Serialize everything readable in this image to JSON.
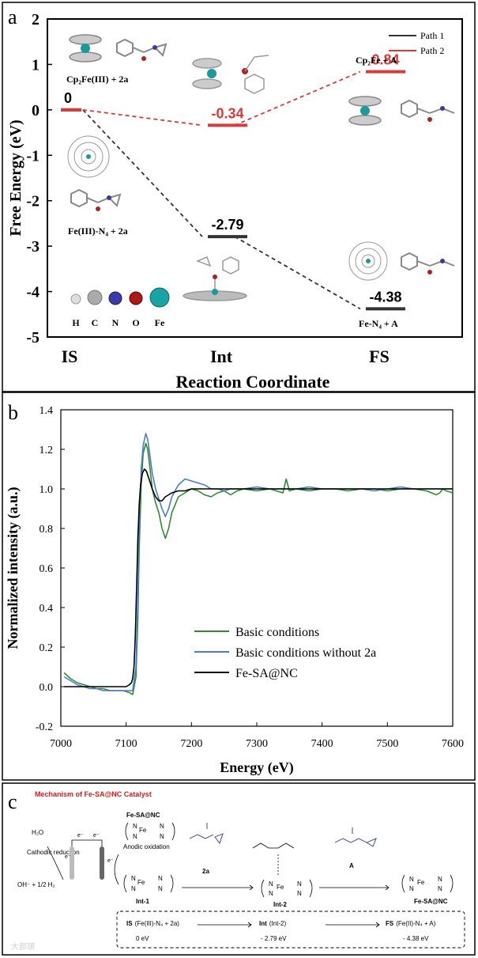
{
  "panel_a": {
    "panel_label": "a",
    "legend": [
      "Path 1",
      "Path 2"
    ],
    "species_labels": {
      "is_top": "Cp₂Fe(III) + 2a",
      "is_bottom": "Fe(III)-N₄ + 2a",
      "fs_top": "Cp₂Fe + A",
      "fs_bottom": "Fe-N₄ + A"
    },
    "atom_legend": [
      "H",
      "C",
      "N",
      "O",
      "Fe"
    ]
  },
  "panel_b": {
    "panel_label": "b"
  },
  "panel_c": {
    "panel_label": "c",
    "title": "Mechanism of Fe-SA@NC Catalyst",
    "catalyst_label": "Fe-SA@NC",
    "water": "H₂O",
    "cathodic": "Cathodic reduction",
    "anodic": "Anodic oxidation",
    "oh_product": "OH⁻ + 1/2 H₂",
    "electron": "e⁻",
    "int1": "Int-1",
    "int2": "Int-2",
    "reagent_2a": "2a",
    "reagent_A": "A",
    "product": "Fe-SA@NC",
    "fe3_label": "Fe",
    "fe2_label": "Fe",
    "n_label": "N",
    "box": {
      "is_label": "IS",
      "is_detail": "(Fe(III)-N₄ + 2a)",
      "is_energy": "0 eV",
      "int_label": "Int",
      "int_detail": "(Int-2)",
      "int_energy": "- 2.79 eV",
      "fs_label": "FS",
      "fs_detail": "(Fe(II)-N₄ + A)",
      "fs_energy": "- 4.38 eV"
    },
    "watermark": "大部頭"
  },
  "chart_data": [
    {
      "type": "line",
      "xlabel": "Reaction Coordinate",
      "ylabel": "Free Energy (eV)",
      "categories": [
        "IS",
        "Int",
        "FS"
      ],
      "ylim": [
        -5,
        2
      ],
      "yticks": [
        2,
        1,
        0,
        -1,
        -2,
        -3,
        -4,
        -5
      ],
      "series": [
        {
          "name": "Path 1",
          "color": "#333333",
          "values": [
            0,
            -2.79,
            -4.38
          ],
          "labels": [
            "",
            "-2.79",
            "-4.38"
          ]
        },
        {
          "name": "Path 2",
          "color": "#d93a3a",
          "values": [
            0,
            -0.34,
            0.84
          ],
          "labels": [
            "0",
            "-0.34",
            "0.84"
          ]
        }
      ],
      "legend_position": "top-right"
    },
    {
      "type": "line",
      "xlabel": "Energy (eV)",
      "ylabel": "Normalized intensity (a.u.)",
      "xlim": [
        7000,
        7600
      ],
      "ylim": [
        -0.2,
        1.4
      ],
      "xticks": [
        7000,
        7100,
        7200,
        7300,
        7400,
        7500,
        7600
      ],
      "yticks": [
        -0.2,
        0.0,
        0.2,
        0.4,
        0.6,
        0.8,
        1.0,
        1.2,
        1.4
      ],
      "legend_position": "bottom-center",
      "series": [
        {
          "name": "Basic conditions",
          "color": "#2e8b2e",
          "x": [
            7005,
            7015,
            7025,
            7035,
            7045,
            7055,
            7065,
            7075,
            7085,
            7095,
            7105,
            7110,
            7115,
            7118,
            7120,
            7123,
            7126,
            7130,
            7133,
            7136,
            7140,
            7145,
            7150,
            7155,
            7160,
            7165,
            7170,
            7180,
            7190,
            7200,
            7210,
            7220,
            7230,
            7240,
            7250,
            7260,
            7270,
            7280,
            7300,
            7320,
            7340,
            7345,
            7350,
            7360,
            7380,
            7400,
            7420,
            7440,
            7460,
            7480,
            7500,
            7520,
            7540,
            7560,
            7575,
            7580,
            7585,
            7590,
            7600
          ],
          "y": [
            0.07,
            0.04,
            0.02,
            0.01,
            0.0,
            -0.01,
            -0.01,
            -0.02,
            -0.02,
            -0.02,
            -0.03,
            -0.04,
            0.05,
            0.35,
            0.7,
            1.02,
            1.18,
            1.23,
            1.2,
            1.12,
            1.0,
            0.93,
            0.88,
            0.8,
            0.75,
            0.8,
            0.88,
            0.96,
            0.98,
            1.0,
            0.99,
            0.97,
            0.96,
            0.98,
            0.99,
            0.97,
            0.99,
            1.0,
            0.99,
            1.0,
            0.98,
            1.05,
            0.99,
            1.0,
            0.99,
            1.0,
            1.0,
            0.99,
            1.0,
            1.0,
            0.99,
            1.0,
            1.0,
            0.99,
            0.97,
            0.98,
            1.0,
            0.99,
            0.98
          ]
        },
        {
          "name": "Basic conditions without 2a",
          "color": "#4a7cc9",
          "x": [
            7005,
            7015,
            7025,
            7035,
            7045,
            7055,
            7065,
            7075,
            7085,
            7095,
            7105,
            7110,
            7115,
            7118,
            7120,
            7123,
            7126,
            7130,
            7133,
            7136,
            7140,
            7145,
            7150,
            7155,
            7160,
            7165,
            7170,
            7180,
            7190,
            7200,
            7210,
            7220,
            7230,
            7240,
            7250,
            7260,
            7270,
            7280,
            7300,
            7320,
            7340,
            7360,
            7380,
            7400,
            7420,
            7440,
            7460,
            7480,
            7500,
            7520,
            7540,
            7560,
            7580,
            7600
          ],
          "y": [
            0.05,
            0.03,
            0.01,
            0.0,
            -0.01,
            -0.01,
            -0.02,
            -0.02,
            -0.02,
            -0.02,
            -0.02,
            -0.02,
            0.1,
            0.45,
            0.8,
            1.1,
            1.22,
            1.28,
            1.25,
            1.18,
            1.08,
            1.0,
            0.95,
            0.9,
            0.86,
            0.9,
            0.96,
            1.02,
            1.05,
            1.04,
            1.03,
            1.02,
            1.0,
            1.0,
            0.99,
            1.0,
            1.0,
            1.0,
            1.01,
            1.0,
            1.0,
            1.0,
            1.01,
            1.0,
            1.0,
            1.0,
            1.0,
            0.99,
            1.0,
            1.01,
            1.0,
            1.0,
            1.0,
            1.0
          ]
        },
        {
          "name": "Fe-SA@NC",
          "color": "#000000",
          "x": [
            7005,
            7020,
            7040,
            7060,
            7080,
            7095,
            7100,
            7105,
            7108,
            7110,
            7112,
            7114,
            7116,
            7118,
            7120,
            7122,
            7125,
            7128,
            7131,
            7134,
            7137,
            7140,
            7145,
            7150,
            7155,
            7160,
            7170,
            7180,
            7190,
            7200,
            7220,
            7240,
            7260,
            7280,
            7300,
            7350,
            7400,
            7450,
            7500,
            7550,
            7600
          ],
          "y": [
            0.0,
            0.0,
            0.0,
            0.0,
            0.0,
            0.0,
            0.0,
            0.01,
            0.02,
            0.04,
            0.1,
            0.25,
            0.5,
            0.75,
            0.92,
            1.02,
            1.08,
            1.1,
            1.09,
            1.06,
            1.03,
            1.0,
            0.96,
            0.94,
            0.94,
            0.96,
            0.98,
            0.99,
            0.99,
            1.0,
            1.0,
            1.0,
            1.0,
            1.0,
            1.0,
            1.0,
            1.0,
            1.0,
            1.0,
            1.0,
            1.0
          ]
        }
      ]
    }
  ]
}
